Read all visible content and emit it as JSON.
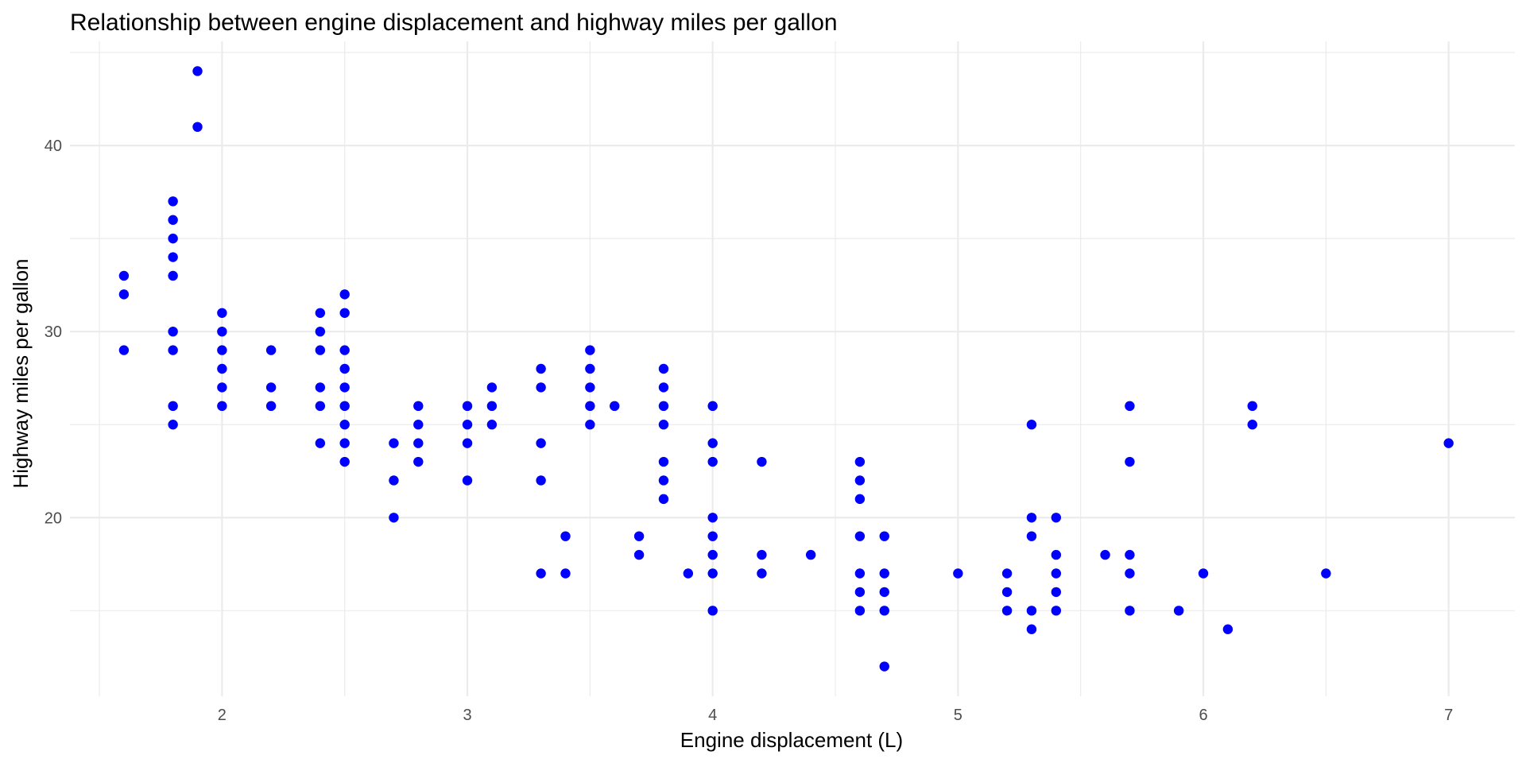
{
  "chart_data": {
    "type": "scatter",
    "title": "Relationship between engine displacement and highway miles per gallon",
    "xlabel": "Engine displacement (L)",
    "ylabel": "Highway miles per gallon",
    "xlim": [
      1.38,
      7.27
    ],
    "ylim": [
      10.4,
      45.6
    ],
    "x_ticks": [
      2,
      3,
      4,
      5,
      6,
      7
    ],
    "x_tick_labels": [
      "2",
      "3",
      "4",
      "5",
      "6",
      "7"
    ],
    "x_minor_ticks": [
      1.5,
      2.5,
      3.5,
      4.5,
      5.5,
      6.5
    ],
    "y_ticks": [
      20,
      30,
      40
    ],
    "y_tick_labels": [
      "20",
      "30",
      "40"
    ],
    "y_minor_ticks": [
      15,
      25,
      35,
      45
    ],
    "grid": true,
    "point_color": "#0000FF",
    "background_color": "#FFFFFF",
    "grid_color": "#EBEBEB",
    "points": [
      {
        "x": 1.6,
        "y": 33
      },
      {
        "x": 1.6,
        "y": 32
      },
      {
        "x": 1.6,
        "y": 29
      },
      {
        "x": 1.8,
        "y": 37
      },
      {
        "x": 1.8,
        "y": 36
      },
      {
        "x": 1.8,
        "y": 35
      },
      {
        "x": 1.8,
        "y": 34
      },
      {
        "x": 1.8,
        "y": 33
      },
      {
        "x": 1.8,
        "y": 30
      },
      {
        "x": 1.8,
        "y": 29
      },
      {
        "x": 1.8,
        "y": 26
      },
      {
        "x": 1.8,
        "y": 25
      },
      {
        "x": 1.9,
        "y": 44
      },
      {
        "x": 1.9,
        "y": 41
      },
      {
        "x": 2.0,
        "y": 31
      },
      {
        "x": 2.0,
        "y": 30
      },
      {
        "x": 2.0,
        "y": 29
      },
      {
        "x": 2.0,
        "y": 28
      },
      {
        "x": 2.0,
        "y": 27
      },
      {
        "x": 2.0,
        "y": 26
      },
      {
        "x": 2.2,
        "y": 29
      },
      {
        "x": 2.2,
        "y": 27
      },
      {
        "x": 2.2,
        "y": 26
      },
      {
        "x": 2.4,
        "y": 31
      },
      {
        "x": 2.4,
        "y": 30
      },
      {
        "x": 2.4,
        "y": 29
      },
      {
        "x": 2.4,
        "y": 27
      },
      {
        "x": 2.4,
        "y": 26
      },
      {
        "x": 2.4,
        "y": 24
      },
      {
        "x": 2.5,
        "y": 32
      },
      {
        "x": 2.5,
        "y": 31
      },
      {
        "x": 2.5,
        "y": 29
      },
      {
        "x": 2.5,
        "y": 28
      },
      {
        "x": 2.5,
        "y": 27
      },
      {
        "x": 2.5,
        "y": 26
      },
      {
        "x": 2.5,
        "y": 25
      },
      {
        "x": 2.5,
        "y": 24
      },
      {
        "x": 2.5,
        "y": 23
      },
      {
        "x": 2.7,
        "y": 24
      },
      {
        "x": 2.7,
        "y": 22
      },
      {
        "x": 2.7,
        "y": 20
      },
      {
        "x": 2.8,
        "y": 26
      },
      {
        "x": 2.8,
        "y": 25
      },
      {
        "x": 2.8,
        "y": 24
      },
      {
        "x": 2.8,
        "y": 23
      },
      {
        "x": 3.0,
        "y": 26
      },
      {
        "x": 3.0,
        "y": 25
      },
      {
        "x": 3.0,
        "y": 24
      },
      {
        "x": 3.0,
        "y": 22
      },
      {
        "x": 3.1,
        "y": 27
      },
      {
        "x": 3.1,
        "y": 26
      },
      {
        "x": 3.1,
        "y": 25
      },
      {
        "x": 3.3,
        "y": 28
      },
      {
        "x": 3.3,
        "y": 27
      },
      {
        "x": 3.3,
        "y": 24
      },
      {
        "x": 3.3,
        "y": 22
      },
      {
        "x": 3.3,
        "y": 17
      },
      {
        "x": 3.4,
        "y": 19
      },
      {
        "x": 3.4,
        "y": 17
      },
      {
        "x": 3.5,
        "y": 29
      },
      {
        "x": 3.5,
        "y": 28
      },
      {
        "x": 3.5,
        "y": 27
      },
      {
        "x": 3.5,
        "y": 26
      },
      {
        "x": 3.5,
        "y": 25
      },
      {
        "x": 3.6,
        "y": 26
      },
      {
        "x": 3.7,
        "y": 19
      },
      {
        "x": 3.7,
        "y": 18
      },
      {
        "x": 3.8,
        "y": 28
      },
      {
        "x": 3.8,
        "y": 27
      },
      {
        "x": 3.8,
        "y": 26
      },
      {
        "x": 3.8,
        "y": 25
      },
      {
        "x": 3.8,
        "y": 23
      },
      {
        "x": 3.8,
        "y": 22
      },
      {
        "x": 3.8,
        "y": 21
      },
      {
        "x": 3.9,
        "y": 17
      },
      {
        "x": 4.0,
        "y": 26
      },
      {
        "x": 4.0,
        "y": 24
      },
      {
        "x": 4.0,
        "y": 23
      },
      {
        "x": 4.0,
        "y": 20
      },
      {
        "x": 4.0,
        "y": 19
      },
      {
        "x": 4.0,
        "y": 18
      },
      {
        "x": 4.0,
        "y": 17
      },
      {
        "x": 4.0,
        "y": 15
      },
      {
        "x": 4.2,
        "y": 23
      },
      {
        "x": 4.2,
        "y": 18
      },
      {
        "x": 4.2,
        "y": 17
      },
      {
        "x": 4.4,
        "y": 18
      },
      {
        "x": 4.6,
        "y": 23
      },
      {
        "x": 4.6,
        "y": 22
      },
      {
        "x": 4.6,
        "y": 21
      },
      {
        "x": 4.6,
        "y": 19
      },
      {
        "x": 4.6,
        "y": 17
      },
      {
        "x": 4.6,
        "y": 16
      },
      {
        "x": 4.6,
        "y": 15
      },
      {
        "x": 4.7,
        "y": 19
      },
      {
        "x": 4.7,
        "y": 17
      },
      {
        "x": 4.7,
        "y": 16
      },
      {
        "x": 4.7,
        "y": 15
      },
      {
        "x": 4.7,
        "y": 12
      },
      {
        "x": 5.0,
        "y": 17
      },
      {
        "x": 5.2,
        "y": 17
      },
      {
        "x": 5.2,
        "y": 16
      },
      {
        "x": 5.2,
        "y": 15
      },
      {
        "x": 5.3,
        "y": 25
      },
      {
        "x": 5.3,
        "y": 20
      },
      {
        "x": 5.3,
        "y": 19
      },
      {
        "x": 5.3,
        "y": 15
      },
      {
        "x": 5.3,
        "y": 14
      },
      {
        "x": 5.4,
        "y": 20
      },
      {
        "x": 5.4,
        "y": 18
      },
      {
        "x": 5.4,
        "y": 17
      },
      {
        "x": 5.4,
        "y": 16
      },
      {
        "x": 5.4,
        "y": 15
      },
      {
        "x": 5.6,
        "y": 18
      },
      {
        "x": 5.7,
        "y": 26
      },
      {
        "x": 5.7,
        "y": 23
      },
      {
        "x": 5.7,
        "y": 18
      },
      {
        "x": 5.7,
        "y": 17
      },
      {
        "x": 5.7,
        "y": 15
      },
      {
        "x": 5.9,
        "y": 15
      },
      {
        "x": 6.0,
        "y": 17
      },
      {
        "x": 6.1,
        "y": 14
      },
      {
        "x": 6.2,
        "y": 26
      },
      {
        "x": 6.2,
        "y": 25
      },
      {
        "x": 6.5,
        "y": 17
      },
      {
        "x": 7.0,
        "y": 24
      }
    ]
  }
}
